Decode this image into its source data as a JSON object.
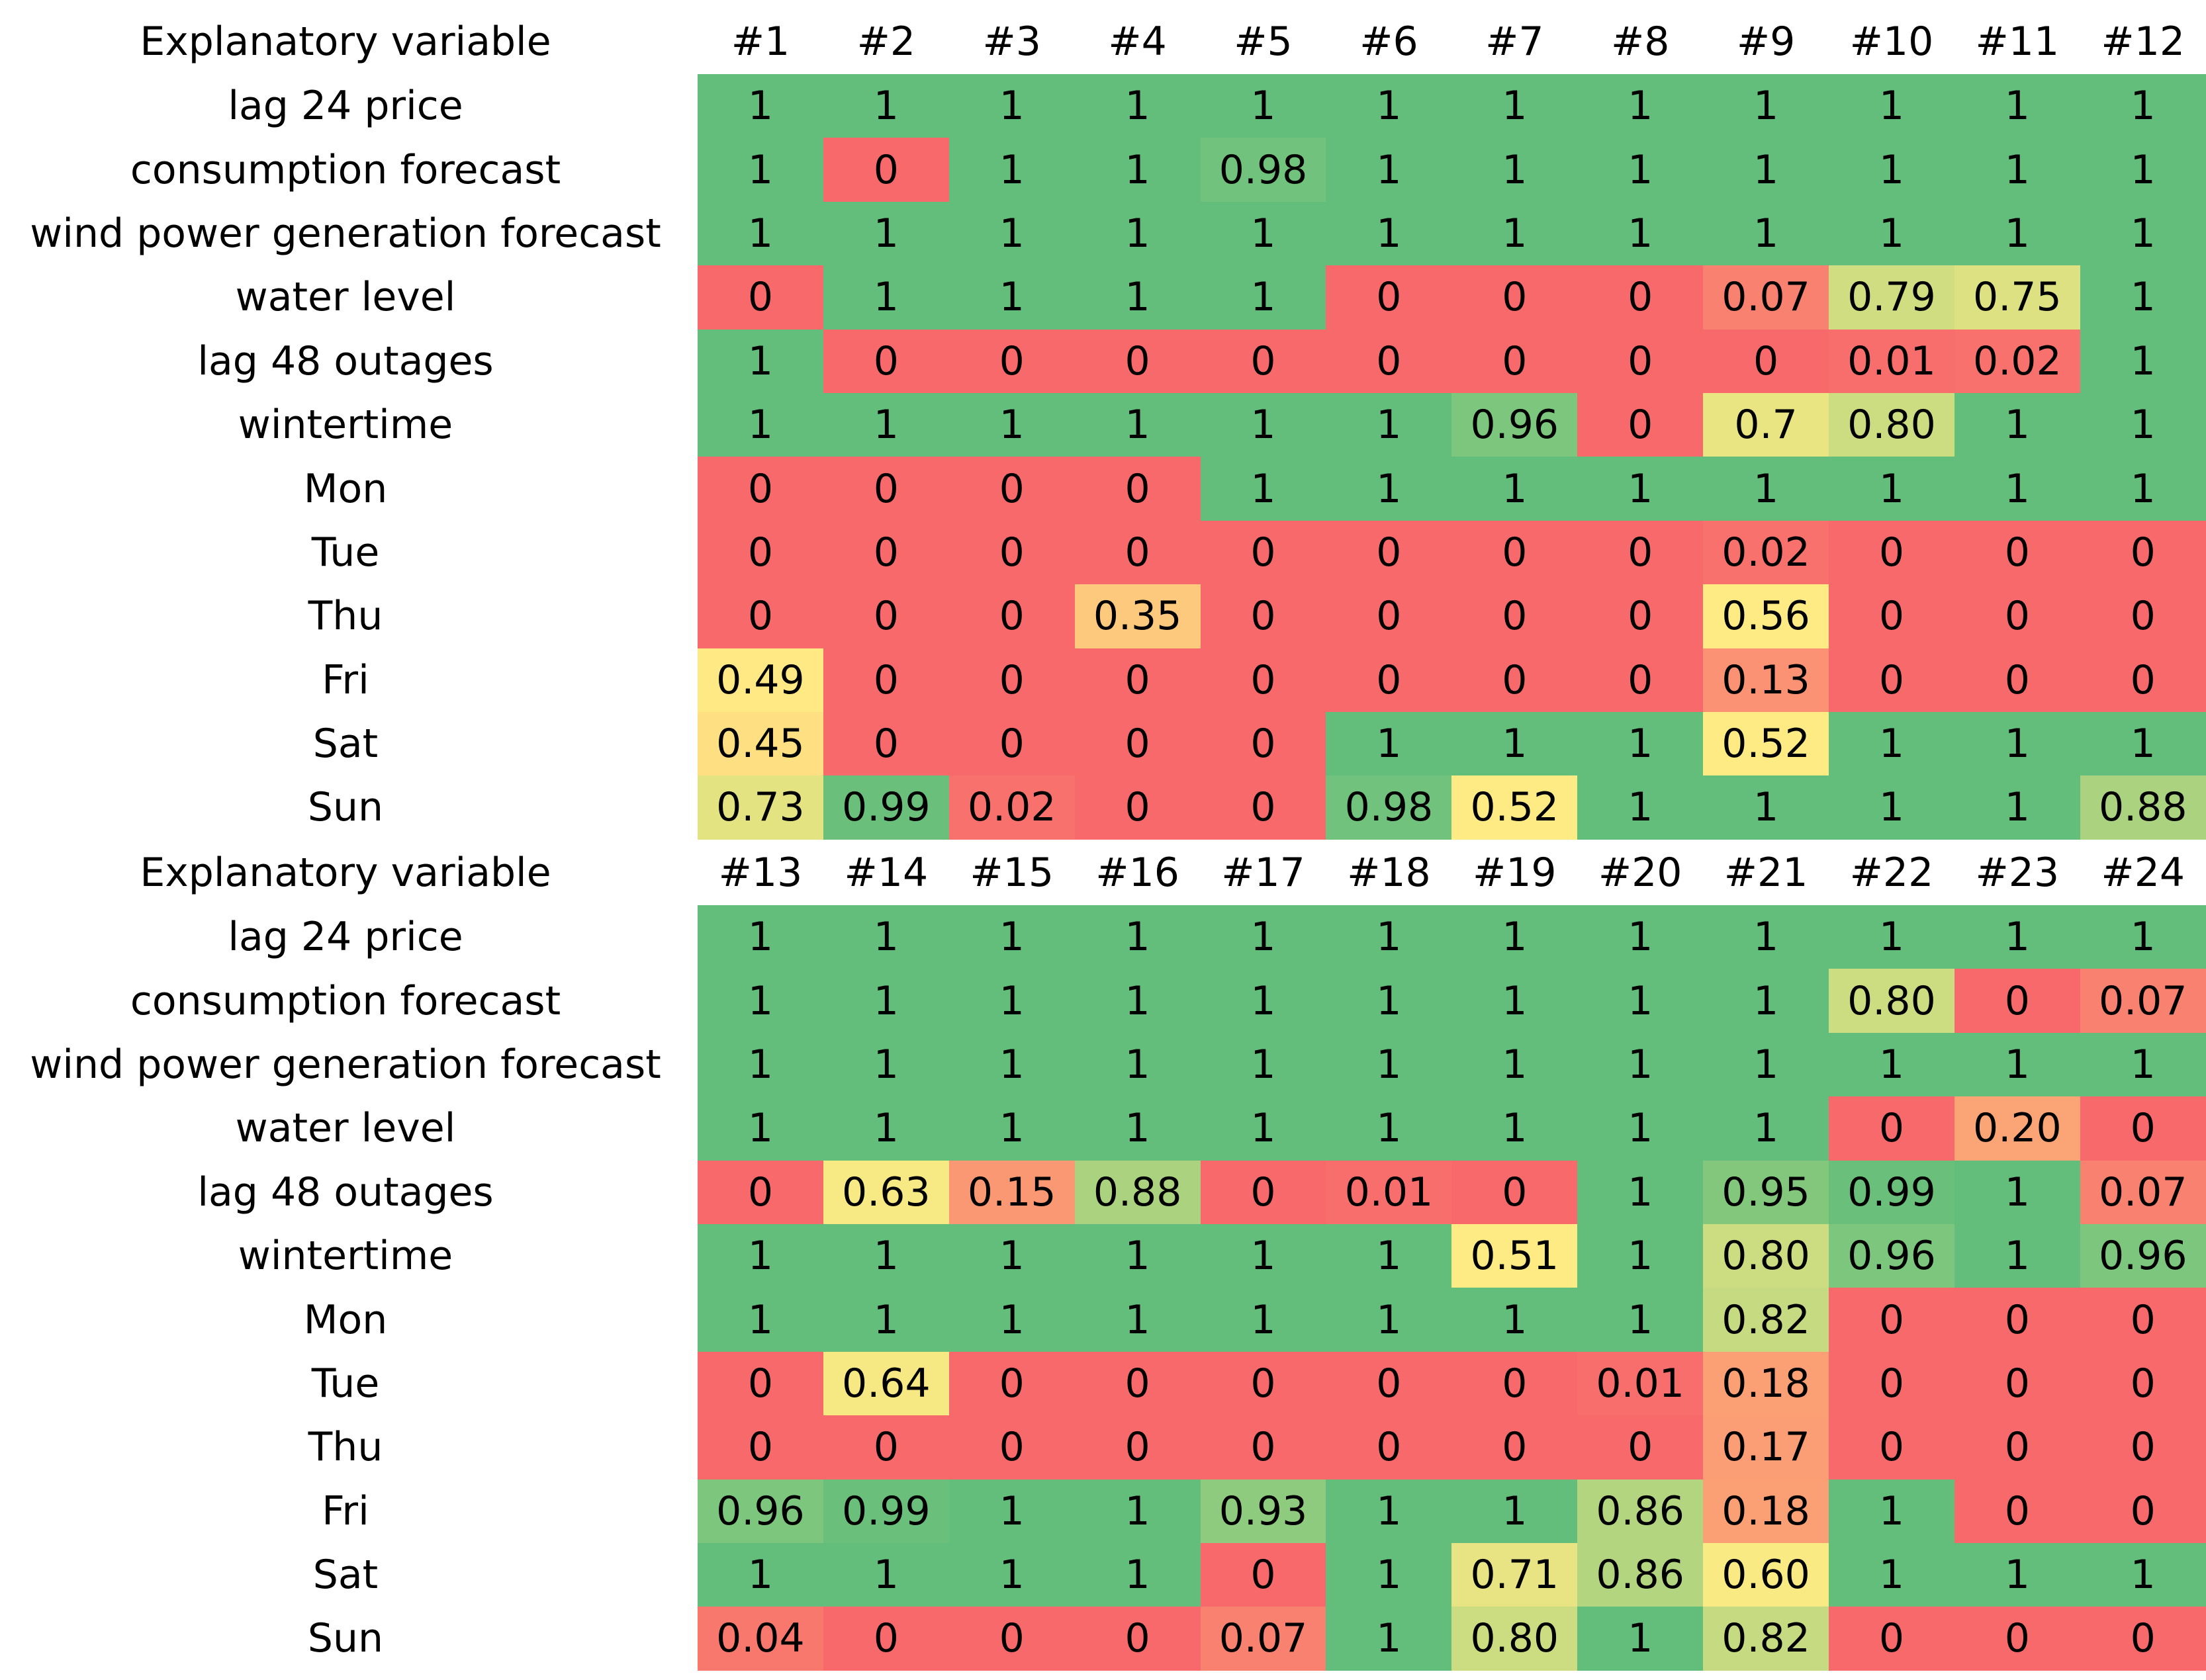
{
  "tables": [
    {
      "header_label": "Explanatory variable",
      "hours": [
        "#1",
        "#2",
        "#3",
        "#4",
        "#5",
        "#6",
        "#7",
        "#8",
        "#9",
        "#10",
        "#11",
        "#12"
      ],
      "rows": [
        {
          "label": "lag 24 price",
          "cells": [
            "1",
            "1",
            "1",
            "1",
            "1",
            "1",
            "1",
            "1",
            "1",
            "1",
            "1",
            "1"
          ]
        },
        {
          "label": "consumption forecast",
          "cells": [
            "1",
            "0",
            "1",
            "1",
            "0.98",
            "1",
            "1",
            "1",
            "1",
            "1",
            "1",
            "1"
          ]
        },
        {
          "label": "wind power generation forecast",
          "cells": [
            "1",
            "1",
            "1",
            "1",
            "1",
            "1",
            "1",
            "1",
            "1",
            "1",
            "1",
            "1"
          ]
        },
        {
          "label": "water level",
          "cells": [
            "0",
            "1",
            "1",
            "1",
            "1",
            "0",
            "0",
            "0",
            "0.07",
            "0.79",
            "0.75",
            "1"
          ]
        },
        {
          "label": "lag 48 outages",
          "cells": [
            "1",
            "0",
            "0",
            "0",
            "0",
            "0",
            "0",
            "0",
            "0",
            "0.01",
            "0.02",
            "1"
          ]
        },
        {
          "label": "wintertime",
          "cells": [
            "1",
            "1",
            "1",
            "1",
            "1",
            "1",
            "0.96",
            "0",
            "0.7",
            "0.80",
            "1",
            "1"
          ]
        },
        {
          "label": "Mon",
          "cells": [
            "0",
            "0",
            "0",
            "0",
            "1",
            "1",
            "1",
            "1",
            "1",
            "1",
            "1",
            "1"
          ]
        },
        {
          "label": "Tue",
          "cells": [
            "0",
            "0",
            "0",
            "0",
            "0",
            "0",
            "0",
            "0",
            "0.02",
            "0",
            "0",
            "0"
          ]
        },
        {
          "label": "Thu",
          "cells": [
            "0",
            "0",
            "0",
            "0.35",
            "0",
            "0",
            "0",
            "0",
            "0.56",
            "0",
            "0",
            "0"
          ]
        },
        {
          "label": "Fri",
          "cells": [
            "0.49",
            "0",
            "0",
            "0",
            "0",
            "0",
            "0",
            "0",
            "0.13",
            "0",
            "0",
            "0"
          ]
        },
        {
          "label": "Sat",
          "cells": [
            "0.45",
            "0",
            "0",
            "0",
            "0",
            "1",
            "1",
            "1",
            "0.52",
            "1",
            "1",
            "1"
          ]
        },
        {
          "label": "Sun",
          "cells": [
            "0.73",
            "0.99",
            "0.02",
            "0",
            "0",
            "0.98",
            "0.52",
            "1",
            "1",
            "1",
            "1",
            "0.88"
          ]
        }
      ]
    },
    {
      "header_label": "Explanatory variable",
      "hours": [
        "#13",
        "#14",
        "#15",
        "#16",
        "#17",
        "#18",
        "#19",
        "#20",
        "#21",
        "#22",
        "#23",
        "#24"
      ],
      "rows": [
        {
          "label": "lag 24 price",
          "cells": [
            "1",
            "1",
            "1",
            "1",
            "1",
            "1",
            "1",
            "1",
            "1",
            "1",
            "1",
            "1"
          ]
        },
        {
          "label": "consumption forecast",
          "cells": [
            "1",
            "1",
            "1",
            "1",
            "1",
            "1",
            "1",
            "1",
            "1",
            "0.80",
            "0",
            "0.07"
          ]
        },
        {
          "label": "wind power generation forecast",
          "cells": [
            "1",
            "1",
            "1",
            "1",
            "1",
            "1",
            "1",
            "1",
            "1",
            "1",
            "1",
            "1"
          ]
        },
        {
          "label": "water level",
          "cells": [
            "1",
            "1",
            "1",
            "1",
            "1",
            "1",
            "1",
            "1",
            "1",
            "0",
            "0.20",
            "0"
          ]
        },
        {
          "label": "lag 48 outages",
          "cells": [
            "0",
            "0.63",
            "0.15",
            "0.88",
            "0",
            "0.01",
            "0",
            "1",
            "0.95",
            "0.99",
            "1",
            "0.07"
          ]
        },
        {
          "label": "wintertime",
          "cells": [
            "1",
            "1",
            "1",
            "1",
            "1",
            "1",
            "0.51",
            "1",
            "0.80",
            "0.96",
            "1",
            "0.96"
          ]
        },
        {
          "label": "Mon",
          "cells": [
            "1",
            "1",
            "1",
            "1",
            "1",
            "1",
            "1",
            "1",
            "0.82",
            "0",
            "0",
            "0"
          ]
        },
        {
          "label": "Tue",
          "cells": [
            "0",
            "0.64",
            "0",
            "0",
            "0",
            "0",
            "0",
            "0.01",
            "0.18",
            "0",
            "0",
            "0"
          ]
        },
        {
          "label": "Thu",
          "cells": [
            "0",
            "0",
            "0",
            "0",
            "0",
            "0",
            "0",
            "0",
            "0.17",
            "0",
            "0",
            "0"
          ]
        },
        {
          "label": "Fri",
          "cells": [
            "0.96",
            "0.99",
            "1",
            "1",
            "0.93",
            "1",
            "1",
            "0.86",
            "0.18",
            "1",
            "0",
            "0"
          ]
        },
        {
          "label": "Sat",
          "cells": [
            "1",
            "1",
            "1",
            "1",
            "0",
            "1",
            "0.71",
            "0.86",
            "0.60",
            "1",
            "1",
            "1"
          ]
        },
        {
          "label": "Sun",
          "cells": [
            "0.04",
            "0",
            "0",
            "0",
            "0.07",
            "1",
            "0.80",
            "1",
            "0.82",
            "0",
            "0",
            "0"
          ]
        }
      ]
    }
  ],
  "chart_data": {
    "type": "heatmap",
    "title": "",
    "row_header": "Explanatory variable",
    "rows": [
      "lag 24 price",
      "consumption forecast",
      "wind power generation forecast",
      "water level",
      "lag 48 outages",
      "wintertime",
      "Mon",
      "Tue",
      "Thu",
      "Fri",
      "Sat",
      "Sun"
    ],
    "columns": [
      "#1",
      "#2",
      "#3",
      "#4",
      "#5",
      "#6",
      "#7",
      "#8",
      "#9",
      "#10",
      "#11",
      "#12",
      "#13",
      "#14",
      "#15",
      "#16",
      "#17",
      "#18",
      "#19",
      "#20",
      "#21",
      "#22",
      "#23",
      "#24"
    ],
    "color_scale": {
      "low": "#f8696b",
      "mid": "#ffeb84",
      "high": "#63be7b"
    }
  },
  "colors": {
    "low": "#f8696b",
    "mid": "#ffeb84",
    "high": "#63be7b"
  }
}
